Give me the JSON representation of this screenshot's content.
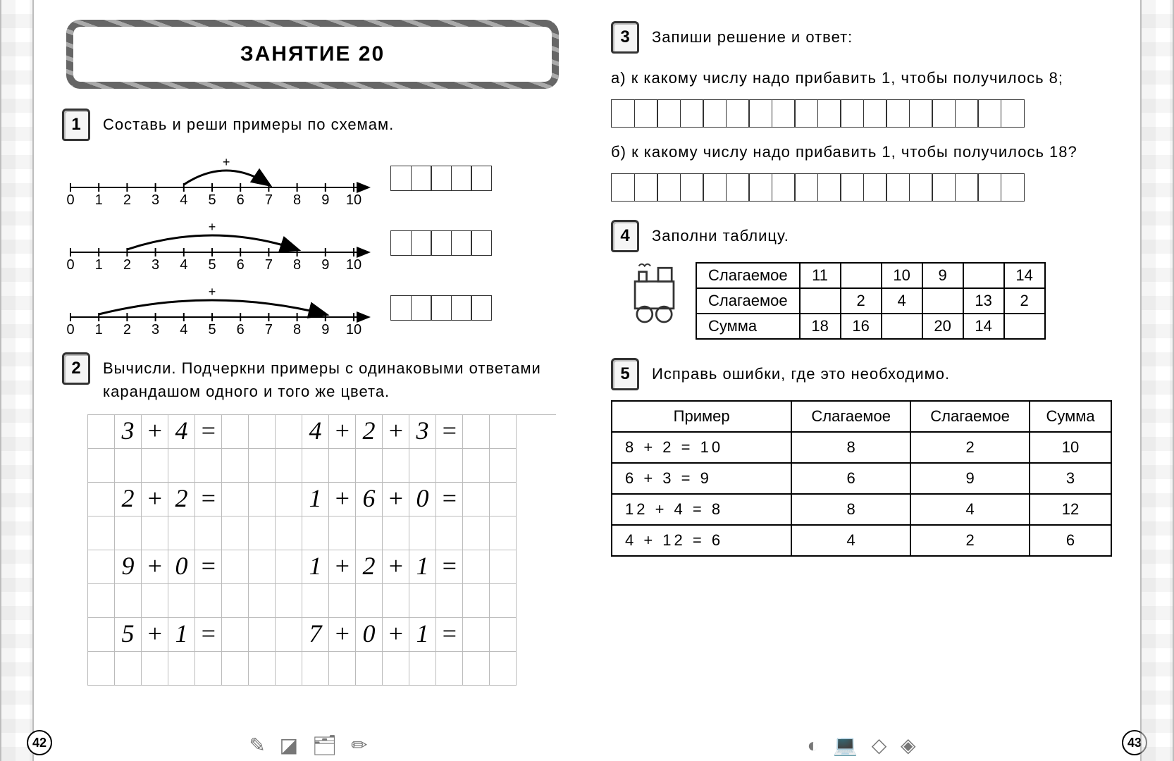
{
  "title": "ЗАНЯТИЕ  20",
  "page_left_num": "42",
  "page_right_num": "43",
  "colors": {
    "line": "#000000",
    "grid": "#bbbbbb",
    "frame": "#555555"
  },
  "task1": {
    "num": "1",
    "text": "Составь и реши примеры по схемам.",
    "numberline": {
      "min": 0,
      "max": 10,
      "ticks": [
        "0",
        "1",
        "2",
        "3",
        "4",
        "5",
        "6",
        "7",
        "8",
        "9",
        "10"
      ]
    },
    "arcs": [
      {
        "from": 4,
        "to": 7,
        "op": "+"
      },
      {
        "from": 2,
        "to": 8,
        "op": "+"
      },
      {
        "from": 1,
        "to": 9,
        "op": "+"
      }
    ],
    "answer_cells": 5
  },
  "task2": {
    "num": "2",
    "text": "Вычисли. Подчеркни примеры с одинаковыми ответами карандашом одного и того же цвета.",
    "grid": {
      "cols": 16,
      "rows": 8
    },
    "expressions_left": [
      "3+4=",
      "2+2=",
      "9+0=",
      "5+1="
    ],
    "expressions_right": [
      "4+2+3=",
      "1+6+0=",
      "1+2+1=",
      "7+0+1="
    ]
  },
  "task3": {
    "num": "3",
    "text": "Запиши решение и ответ:",
    "a_label": "а)",
    "a_text": "к какому числу надо прибавить 1, чтобы получилось 8;",
    "b_label": "б)",
    "b_text": "к какому числу надо прибавить 1, чтобы получилось 18?",
    "answer_cells": 18
  },
  "task4": {
    "num": "4",
    "text": "Заполни таблицу.",
    "row_labels": [
      "Слагаемое",
      "Слагаемое",
      "Сумма"
    ],
    "rows": [
      [
        "11",
        "",
        "10",
        "9",
        "",
        "14"
      ],
      [
        "",
        "2",
        "4",
        "",
        "13",
        "2"
      ],
      [
        "18",
        "16",
        "",
        "20",
        "14",
        ""
      ]
    ]
  },
  "task5": {
    "num": "5",
    "text": "Исправь ошибки, где это необходимо.",
    "headers": [
      "Пример",
      "Слагаемое",
      "Слагаемое",
      "Сумма"
    ],
    "rows": [
      {
        "expr": "8 + 2 = 10",
        "a": "8",
        "b": "2",
        "s": "10"
      },
      {
        "expr": "6 + 3 = 9",
        "a": "6",
        "b": "9",
        "s": "3"
      },
      {
        "expr": "12 + 4 = 8",
        "a": "8",
        "b": "4",
        "s": "12"
      },
      {
        "expr": "4 + 12 = 6",
        "a": "4",
        "b": "2",
        "s": "6"
      }
    ]
  }
}
